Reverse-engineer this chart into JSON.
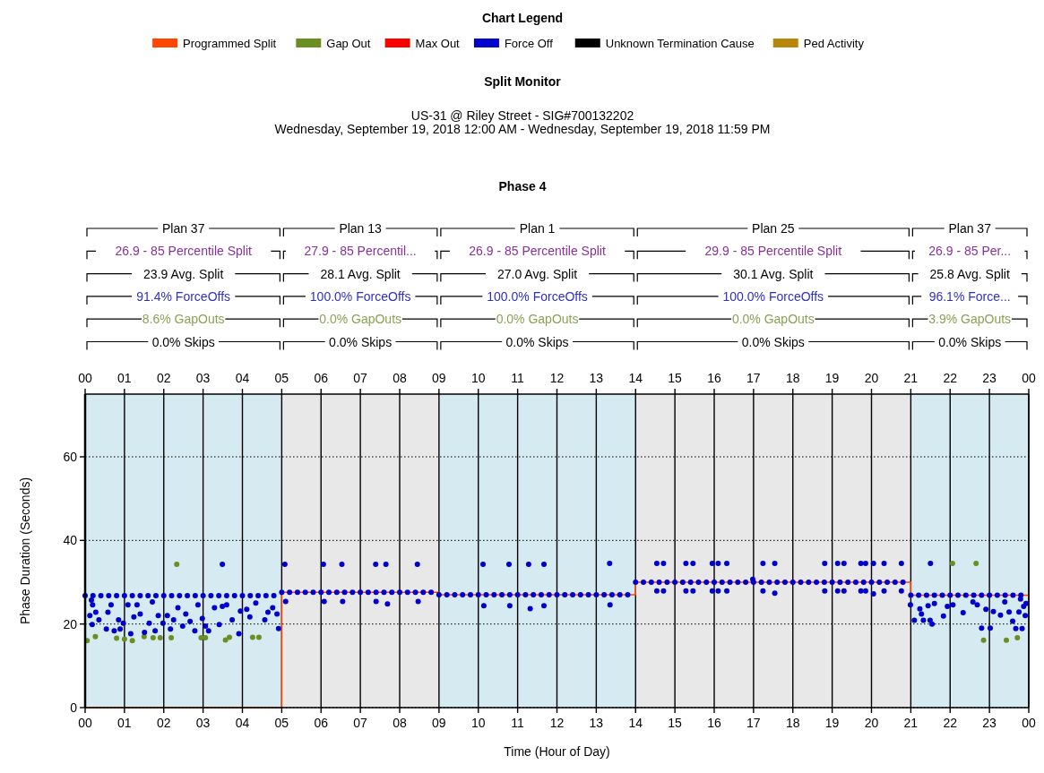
{
  "chart_data": {
    "type": "scatter",
    "legend_title": "Chart Legend",
    "title": "Split Monitor",
    "subtitle": "US-31 @ Riley Street - SIG#700132202\nWednesday, September 19, 2018 12:00 AM - Wednesday, September 19, 2018 11:59 PM",
    "xlabel": "Time (Hour of Day)",
    "ylabel": "Phase Duration (Seconds)",
    "xlim": [
      0,
      24
    ],
    "ylim": [
      0,
      75
    ],
    "xticks": [
      {
        "value": 0,
        "label": "00"
      },
      {
        "value": 1,
        "label": "01"
      },
      {
        "value": 2,
        "label": "02"
      },
      {
        "value": 3,
        "label": "03"
      },
      {
        "value": 4,
        "label": "04"
      },
      {
        "value": 5,
        "label": "05"
      },
      {
        "value": 6,
        "label": "06"
      },
      {
        "value": 7,
        "label": "07"
      },
      {
        "value": 8,
        "label": "08"
      },
      {
        "value": 9,
        "label": "09"
      },
      10,
      11,
      12,
      13,
      14,
      15,
      16,
      17,
      18,
      19,
      20,
      21,
      22,
      23,
      {
        "value": 24,
        "label": "00"
      }
    ],
    "x2lim": [
      "2018-09-19T00:00",
      "2018-09-20T00:00"
    ],
    "x2ticks": [
      {
        "value": "2018-09-19T00:00",
        "label": "00"
      },
      {
        "value": "2018-09-19T01:00",
        "label": "01"
      },
      {
        "value": "2018-09-19T02:00",
        "label": "02"
      },
      {
        "value": "2018-09-19T03:00",
        "label": "03"
      },
      {
        "value": "2018-09-19T04:00",
        "label": "04"
      },
      {
        "value": "2018-09-19T05:00",
        "label": "05"
      },
      {
        "value": "2018-09-19T06:00",
        "label": "06"
      },
      {
        "value": "2018-09-19T07:00",
        "label": "07"
      },
      {
        "value": "2018-09-19T08:00",
        "label": "08"
      },
      {
        "value": "2018-09-19T09:00",
        "label": "09"
      },
      {
        "value": "2018-09-19T10:00",
        "label": "10"
      },
      {
        "value": "2018-09-19T11:00",
        "label": "11"
      },
      {
        "value": "2018-09-19T12:00",
        "label": "12"
      },
      {
        "value": "2018-09-19T13:00",
        "label": "13"
      },
      {
        "value": "2018-09-19T14:00",
        "label": "14"
      },
      {
        "value": "2018-09-19T15:00",
        "label": "15"
      },
      {
        "value": "2018-09-19T16:00",
        "label": "16"
      },
      {
        "value": "2018-09-19T17:00",
        "label": "17"
      },
      {
        "value": "2018-09-19T18:00",
        "label": "18"
      },
      {
        "value": "2018-09-19T19:00",
        "label": "19"
      },
      {
        "value": "2018-09-19T20:00",
        "label": "20"
      },
      {
        "value": "2018-09-19T21:00",
        "label": "21"
      },
      {
        "value": "2018-09-19T22:00",
        "label": "22"
      },
      {
        "value": "2018-09-19T23:00",
        "label": "23"
      },
      {
        "value": "2018-09-20T00:00",
        "label": "00"
      }
    ],
    "yticks": [
      0,
      20,
      40,
      60
    ],
    "grid": true,
    "legend": "top",
    "marker": "circle",
    "bands": [
      {
        "axis": "x",
        "from": 0,
        "to": 5,
        "color": "#d6eaf2"
      },
      {
        "axis": "x",
        "from": 5,
        "to": 9,
        "color": "#e8e8e8"
      },
      {
        "axis": "x",
        "from": 9,
        "to": 14,
        "color": "#d6eaf2"
      },
      {
        "axis": "x",
        "from": 14,
        "to": 21,
        "color": "#e8e8e8"
      },
      {
        "axis": "x",
        "from": 21,
        "to": 24,
        "color": "#d6eaf2"
      }
    ],
    "annotations": [
      "Phase 4",
      "Plan 37",
      "26.9 - 85 Percentile Split",
      "23.9 Avg. Split",
      "91.4% ForceOffs",
      "8.6% GapOuts",
      "0.0% Skips",
      "Plan 13",
      "27.9 - 85 Percentil...",
      "28.1 Avg. Split",
      "100.0% ForceOffs",
      "0.0% GapOuts",
      "0.0% Skips",
      "Plan 1",
      "26.9 - 85 Percentile Split",
      "27.0 Avg. Split",
      "100.0% ForceOffs",
      "0.0% GapOuts",
      "0.0% Skips",
      "Plan 25",
      "29.9 - 85 Percentile Split",
      "30.1 Avg. Split",
      "100.0% ForceOffs",
      "0.0% GapOuts",
      "0.0% Skips",
      "Plan 37",
      "26.9 - 85 Per...",
      "25.8 Avg. Split",
      "96.1% Force...",
      "3.9% GapOuts",
      "0.0% Skips"
    ],
    "series": [
      {
        "name": "Programmed Split",
        "type": "step",
        "marker": "none",
        "color": "#ff4500",
        "x": [
          0,
          5,
          9,
          14,
          21,
          24
        ],
        "values": [
          0,
          27.6,
          27,
          30,
          26.9,
          26.9
        ]
      },
      {
        "name": "Gap Out",
        "color": "#6b8e23",
        "x": [
          0.05,
          0.26,
          0.8,
          1.0,
          1.2,
          1.5,
          1.73,
          1.91,
          2.19,
          2.33,
          2.95,
          3.06,
          3.57,
          3.67,
          4.26,
          4.42,
          22.06,
          22.66,
          22.85,
          23.43,
          23.71
        ],
        "values": [
          16,
          17,
          16.6,
          16.4,
          16,
          17,
          16.7,
          16.7,
          16.7,
          34.3,
          16.7,
          16.7,
          16.2,
          16.8,
          16.8,
          16.8,
          34.5,
          34.5,
          16.1,
          16.1,
          16.7
        ]
      },
      {
        "name": "Max Out",
        "color": "#ff0000"
      },
      {
        "name": "Force Off",
        "color": "#0000cd",
        "x": [
          0,
          0.2,
          0.4,
          0.6,
          0.8,
          1,
          1.2,
          1.4,
          1.6,
          1.8,
          2,
          2.2,
          2.4,
          2.6,
          2.8,
          3,
          3.2,
          3.4,
          3.6,
          3.8,
          4,
          4.2,
          4.4,
          4.6,
          4.8,
          5,
          5.2,
          5.4,
          5.6,
          5.8,
          6,
          6.2,
          6.4,
          6.6,
          6.8,
          7,
          7.2,
          7.4,
          7.6,
          7.8,
          8,
          8.2,
          8.4,
          8.6,
          8.8,
          9,
          9.2,
          9.4,
          9.6,
          9.8,
          10,
          10.2,
          10.4,
          10.6,
          10.8,
          11,
          11.2,
          11.4,
          11.6,
          11.8,
          12,
          12.2,
          12.4,
          12.6,
          12.8,
          13,
          13.2,
          13.4,
          13.6,
          13.8,
          14,
          14.2,
          14.4,
          14.6,
          14.8,
          15,
          15.2,
          15.4,
          15.6,
          15.8,
          16,
          16.2,
          16.4,
          16.6,
          16.8,
          17,
          17.2,
          17.4,
          17.6,
          17.8,
          18,
          18.2,
          18.4,
          18.6,
          18.8,
          19,
          19.2,
          19.4,
          19.6,
          19.8,
          20,
          20.2,
          20.4,
          20.6,
          20.8,
          21,
          21.2,
          21.4,
          21.6,
          21.8,
          22,
          22.2,
          22.4,
          22.6,
          22.8,
          23,
          23.2,
          23.4,
          23.6,
          23.8,
          0.16,
          0.19,
          0.12,
          0.18,
          0.27,
          0.35,
          0.54,
          0.58,
          0.66,
          0.74,
          0.85,
          0.89,
          0.97,
          1.09,
          1.16,
          1.24,
          1.32,
          1.4,
          1.51,
          1.63,
          1.71,
          1.78,
          1.86,
          1.98,
          2.09,
          2.17,
          2.25,
          2.36,
          2.48,
          2.56,
          2.67,
          2.79,
          2.87,
          2.98,
          3.06,
          3.14,
          3.29,
          3.41,
          3.49,
          3.6,
          3.74,
          3.91,
          3.95,
          4.11,
          4.19,
          4.34,
          4.57,
          4.65,
          4.77,
          4.88,
          4.92,
          3.49,
          5.08,
          6.06,
          6.53,
          7.39,
          7.65,
          8.45,
          5.1,
          6.08,
          6.55,
          7.4,
          7.69,
          8.47,
          10.12,
          10.78,
          11.28,
          11.67,
          13.34,
          10.14,
          10.8,
          11.32,
          11.67,
          13.35,
          14.54,
          14.71,
          15.28,
          15.46,
          15.95,
          16.1,
          16.32,
          17.24,
          17.54,
          18.81,
          19.14,
          19.3,
          19.73,
          19.85,
          20.05,
          20.32,
          20.76,
          14.54,
          14.71,
          15.28,
          15.46,
          15.95,
          16.1,
          16.32,
          17.24,
          17.54,
          18.81,
          19.14,
          19.3,
          19.73,
          19.85,
          20.05,
          20.32,
          20.76,
          16.98,
          20.99,
          21.09,
          21.23,
          21.27,
          21.32,
          21.44,
          21.49,
          21.5,
          21.54,
          21.6,
          21.83,
          21.93,
          22.07,
          22.33,
          22.58,
          22.69,
          22.8,
          22.91,
          23.02,
          23.1,
          23.28,
          23.39,
          23.5,
          23.59,
          23.67,
          23.75,
          23.83,
          23.87,
          23.91,
          23.93,
          23.79
        ],
        "values": [
          26.8,
          26.8,
          26.8,
          26.8,
          26.8,
          26.8,
          26.8,
          26.8,
          26.8,
          26.8,
          26.8,
          26.8,
          26.8,
          26.8,
          26.8,
          26.8,
          26.8,
          26.8,
          26.8,
          26.8,
          26.8,
          26.8,
          26.8,
          26.8,
          26.8,
          27.6,
          27.6,
          27.6,
          27.6,
          27.6,
          27.6,
          27.6,
          27.6,
          27.6,
          27.6,
          27.6,
          27.6,
          27.6,
          27.6,
          27.6,
          27.6,
          27.6,
          27.6,
          27.6,
          27.6,
          27,
          27,
          27,
          27,
          27,
          27,
          27,
          27,
          27,
          27,
          27,
          27,
          27,
          27,
          27,
          27,
          27,
          27,
          27,
          27,
          27,
          27,
          27,
          27,
          27,
          30,
          30,
          30,
          30,
          30,
          30,
          30,
          30,
          30,
          30,
          30,
          30,
          30,
          30,
          30,
          30,
          30,
          30,
          30,
          30,
          30,
          30,
          30,
          30,
          30,
          30,
          30,
          30,
          30,
          30,
          30,
          30,
          30,
          30,
          30,
          26.9,
          26.9,
          26.9,
          26.9,
          26.9,
          26.9,
          26.9,
          26.9,
          26.9,
          26.9,
          26.9,
          26.9,
          26.9,
          26.9,
          26.9,
          25.7,
          24.6,
          22,
          19.9,
          22.8,
          21,
          18.8,
          22.8,
          24.6,
          18.4,
          21,
          18.8,
          20.2,
          24.6,
          17.7,
          21.7,
          24.6,
          22.4,
          18,
          20.2,
          25.3,
          18.4,
          22,
          20.2,
          22,
          18.8,
          21,
          23.9,
          19.5,
          22.4,
          20.6,
          18.4,
          24.6,
          21.3,
          19.5,
          18.4,
          23.9,
          19.9,
          24.2,
          24.6,
          21,
          17.7,
          23.1,
          23.5,
          21.7,
          25,
          21,
          22.8,
          23.9,
          22.4,
          18.9,
          34.3,
          34.3,
          34.3,
          34.3,
          34.3,
          34.3,
          34.3,
          25.4,
          25.4,
          25.4,
          25.4,
          24.8,
          25.4,
          34.3,
          34.3,
          34.3,
          34.3,
          34.5,
          24.4,
          24.4,
          23.7,
          24.4,
          24.6,
          34.5,
          34.5,
          34.5,
          34.5,
          34.5,
          34.5,
          34.5,
          34.5,
          34.5,
          34.5,
          34.5,
          34.5,
          34.5,
          34.5,
          34.5,
          34.5,
          34.5,
          27.9,
          27.9,
          27.9,
          27.9,
          27.9,
          27.9,
          27.9,
          27.9,
          27.4,
          27.9,
          27.9,
          27.9,
          27.9,
          27.9,
          27.2,
          27.9,
          27.9,
          30.7,
          24.6,
          20.9,
          23.6,
          22.4,
          20.9,
          24.4,
          20.9,
          34.5,
          20,
          24.9,
          21.9,
          24.2,
          24.6,
          22.7,
          25.3,
          24.6,
          19,
          23.5,
          19,
          23,
          22.1,
          25.3,
          22.9,
          20.7,
          18.9,
          22.9,
          18.9,
          24.2,
          22,
          24.9,
          26
        ]
      },
      {
        "name": "Unknown Termination Cause",
        "color": "#000000"
      },
      {
        "name": "Ped Activity",
        "color": "#b8860b"
      }
    ]
  }
}
